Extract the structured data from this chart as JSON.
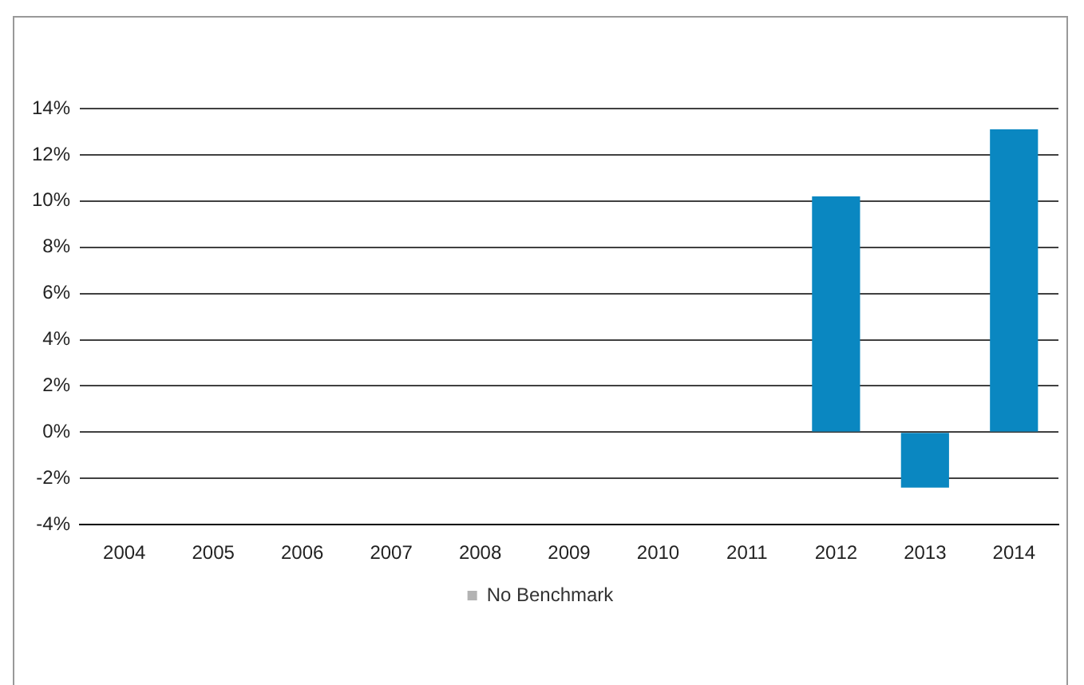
{
  "chart_data": {
    "type": "bar",
    "categories": [
      "2004",
      "2005",
      "2006",
      "2007",
      "2008",
      "2009",
      "2010",
      "2011",
      "2012",
      "2013",
      "2014"
    ],
    "series": [
      {
        "color": "#0a87c1",
        "values": [
          null,
          null,
          null,
          null,
          null,
          null,
          null,
          null,
          10.2,
          -2.4,
          13.1
        ]
      },
      {
        "name": "No Benchmark",
        "color": "#b3b3b3",
        "values": [
          null,
          null,
          null,
          null,
          null,
          null,
          null,
          null,
          null,
          null,
          null
        ]
      }
    ],
    "ylim": [
      -4,
      14
    ],
    "yticks": [
      {
        "value": -4,
        "label": "-4%"
      },
      {
        "value": -2,
        "label": "-2%"
      },
      {
        "value": 0,
        "label": "0%"
      },
      {
        "value": 2,
        "label": "2%"
      },
      {
        "value": 4,
        "label": "4%"
      },
      {
        "value": 6,
        "label": "6%"
      },
      {
        "value": 8,
        "label": "8%"
      },
      {
        "value": 10,
        "label": "10%"
      },
      {
        "value": 12,
        "label": "12%"
      },
      {
        "value": 14,
        "label": "14%"
      }
    ],
    "grid": "y",
    "legend": "bottom"
  }
}
